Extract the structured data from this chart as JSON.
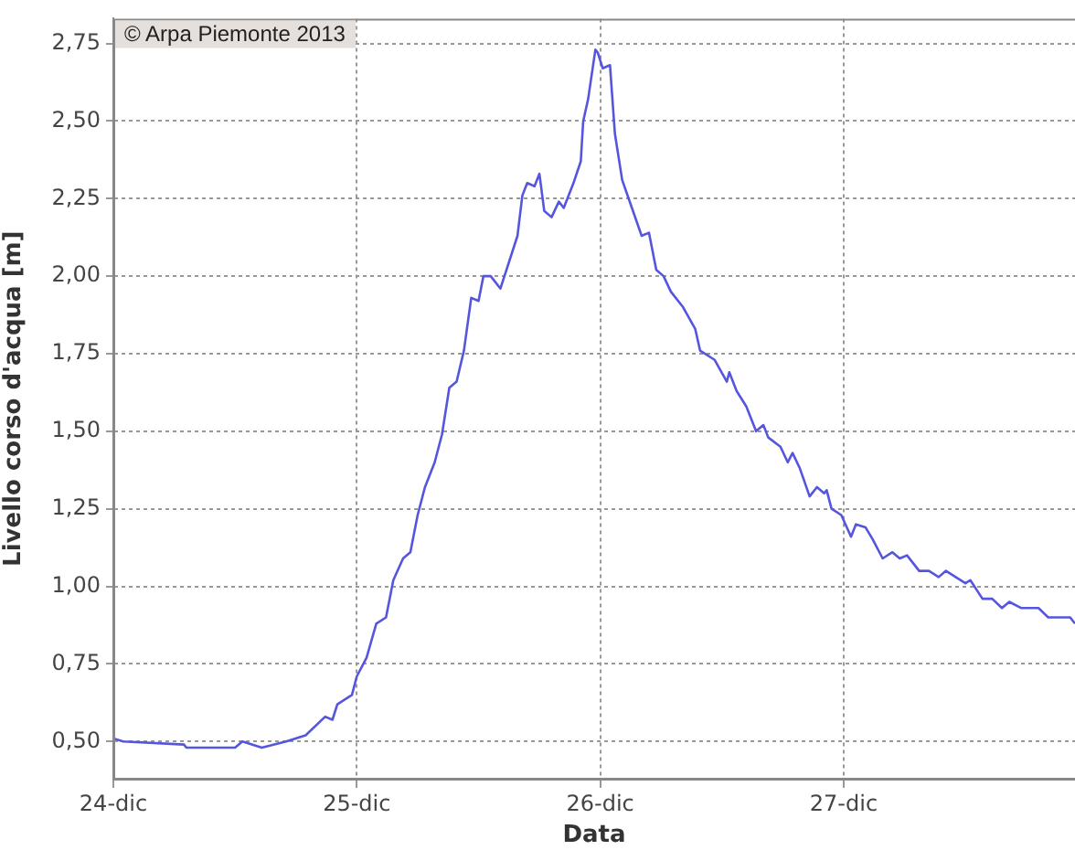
{
  "chart_data": {
    "type": "line",
    "xlabel": "Data",
    "ylabel": "Livello corso d'acqua [m]",
    "annotations": [
      "© Arpa Piemonte 2013"
    ],
    "x": [
      24.0,
      24.04,
      24.29,
      24.3,
      24.38,
      24.5,
      24.53,
      24.61,
      24.71,
      24.79,
      24.87,
      24.9,
      24.92,
      24.98,
      25.0,
      25.04,
      25.08,
      25.12,
      25.15,
      25.19,
      25.22,
      25.25,
      25.28,
      25.32,
      25.35,
      25.38,
      25.41,
      25.44,
      25.47,
      25.5,
      25.52,
      25.55,
      25.59,
      25.66,
      25.68,
      25.7,
      25.73,
      25.75,
      25.77,
      25.8,
      25.83,
      25.85,
      25.89,
      25.92,
      25.93,
      25.95,
      25.98,
      25.99,
      26.01,
      26.04,
      26.06,
      26.09,
      26.13,
      26.17,
      26.2,
      26.23,
      26.26,
      26.29,
      26.34,
      26.39,
      26.41,
      26.47,
      26.52,
      26.53,
      26.56,
      26.6,
      26.64,
      26.67,
      26.69,
      26.74,
      26.77,
      26.79,
      26.82,
      26.86,
      26.89,
      26.92,
      26.93,
      26.95,
      26.99,
      27.03,
      27.05,
      27.09,
      27.12,
      27.16,
      27.2,
      27.23,
      27.26,
      27.31,
      27.35,
      27.39,
      27.42,
      27.46,
      27.5,
      27.52,
      27.57,
      27.61,
      27.65,
      27.68,
      27.73,
      27.8,
      27.84,
      27.93,
      27.95
    ],
    "series": [
      {
        "color": "#5555dd",
        "values": [
          0.51,
          0.5,
          0.49,
          0.48,
          0.48,
          0.48,
          0.5,
          0.48,
          0.5,
          0.52,
          0.58,
          0.57,
          0.62,
          0.65,
          0.71,
          0.77,
          0.88,
          0.9,
          1.02,
          1.09,
          1.11,
          1.23,
          1.32,
          1.4,
          1.49,
          1.64,
          1.66,
          1.76,
          1.93,
          1.92,
          2.0,
          2.0,
          1.96,
          2.13,
          2.26,
          2.3,
          2.29,
          2.33,
          2.21,
          2.19,
          2.24,
          2.22,
          2.3,
          2.37,
          2.5,
          2.57,
          2.73,
          2.72,
          2.67,
          2.68,
          2.46,
          2.31,
          2.22,
          2.13,
          2.14,
          2.02,
          2.0,
          1.95,
          1.9,
          1.83,
          1.76,
          1.73,
          1.66,
          1.69,
          1.63,
          1.58,
          1.5,
          1.52,
          1.48,
          1.45,
          1.4,
          1.43,
          1.38,
          1.29,
          1.32,
          1.3,
          1.31,
          1.25,
          1.23,
          1.16,
          1.2,
          1.19,
          1.15,
          1.09,
          1.11,
          1.09,
          1.1,
          1.05,
          1.05,
          1.03,
          1.05,
          1.03,
          1.01,
          1.02,
          0.96,
          0.96,
          0.93,
          0.95,
          0.93,
          0.93,
          0.9,
          0.9,
          0.88
        ]
      }
    ],
    "xlim": [
      24,
      27.95
    ],
    "xticks": [
      {
        "value": 24,
        "label": "24-dic"
      },
      {
        "value": 25,
        "label": "25-dic"
      },
      {
        "value": 26,
        "label": "26-dic"
      },
      {
        "value": 27,
        "label": "27-dic"
      }
    ],
    "ylim": [
      0.38,
      2.83
    ],
    "yticks": [
      {
        "value": 0.5,
        "label": "0,50"
      },
      {
        "value": 0.75,
        "label": "0,75"
      },
      {
        "value": 1,
        "label": "1,00"
      },
      {
        "value": 1.25,
        "label": "1,25"
      },
      {
        "value": 1.5,
        "label": "1,50"
      },
      {
        "value": 1.75,
        "label": "1,75"
      },
      {
        "value": 2,
        "label": "2,00"
      },
      {
        "value": 2.25,
        "label": "2,25"
      },
      {
        "value": 2.5,
        "label": "2,50"
      },
      {
        "value": 2.75,
        "label": "2,75"
      }
    ],
    "grid": true,
    "legend": false,
    "marker": "none",
    "line_style": "solid"
  }
}
